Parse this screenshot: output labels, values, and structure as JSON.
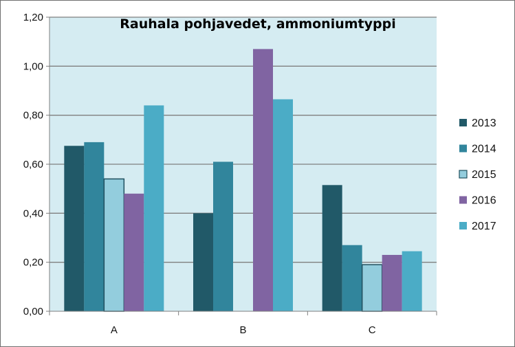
{
  "chart_data": {
    "type": "bar",
    "title": "Rauhala pohjavedet, ammoniumtyppi",
    "xlabel": "",
    "ylabel": "",
    "categories": [
      "A",
      "B",
      "C"
    ],
    "ylim": [
      0,
      1.2
    ],
    "yticks": [
      0,
      0.2,
      0.4,
      0.6,
      0.8,
      1.0,
      1.2
    ],
    "ytick_labels": [
      "0,00",
      "0,20",
      "0,40",
      "0,60",
      "0,80",
      "1,00",
      "1,20"
    ],
    "grid": true,
    "legend_position": "right",
    "plot_background": "#d5ecf2",
    "series": [
      {
        "name": "2013",
        "color": "#215968",
        "values": [
          0.675,
          0.4,
          0.515
        ]
      },
      {
        "name": "2014",
        "color": "#31859c",
        "values": [
          0.69,
          0.61,
          0.27
        ]
      },
      {
        "name": "2015",
        "color": "#93cddd",
        "values": [
          0.54,
          null,
          0.19
        ]
      },
      {
        "name": "2016",
        "color": "#8064a2",
        "values": [
          0.48,
          1.07,
          0.23
        ]
      },
      {
        "name": "2017",
        "color": "#4bacc6",
        "values": [
          0.84,
          0.865,
          0.245
        ]
      }
    ]
  }
}
